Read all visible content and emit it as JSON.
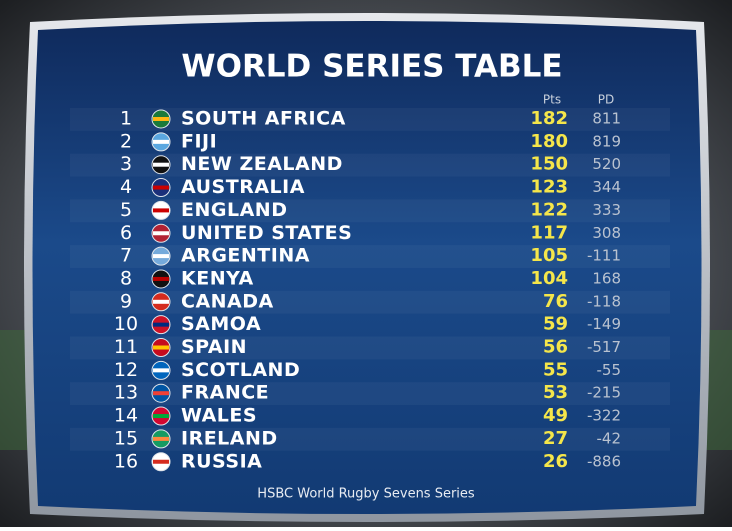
{
  "title": "WORLD SERIES TABLE",
  "table": {
    "headers": [
      "Pts",
      "PD"
    ],
    "rows": [
      [
        1,
        "SOUTH AFRICA",
        182,
        811
      ],
      [
        2,
        "FIJI",
        180,
        819
      ],
      [
        3,
        "NEW ZEALAND",
        150,
        520
      ],
      [
        4,
        "AUSTRALIA",
        123,
        344
      ],
      [
        5,
        "ENGLAND",
        122,
        333
      ],
      [
        6,
        "UNITED STATES",
        117,
        308
      ],
      [
        7,
        "ARGENTINA",
        105,
        -111
      ],
      [
        8,
        "KENYA",
        104,
        168
      ],
      [
        9,
        "CANADA",
        76,
        -118
      ],
      [
        10,
        "SAMOA",
        59,
        -149
      ],
      [
        11,
        "SPAIN",
        56,
        -517
      ],
      [
        12,
        "SCOTLAND",
        55,
        -55
      ],
      [
        13,
        "FRANCE",
        53,
        -215
      ],
      [
        14,
        "WALES",
        49,
        -322
      ],
      [
        15,
        "IRELAND",
        27,
        -42
      ],
      [
        16,
        "RUSSIA",
        26,
        -886
      ]
    ]
  },
  "footer": "HSBC World Rugby Sevens Series"
}
